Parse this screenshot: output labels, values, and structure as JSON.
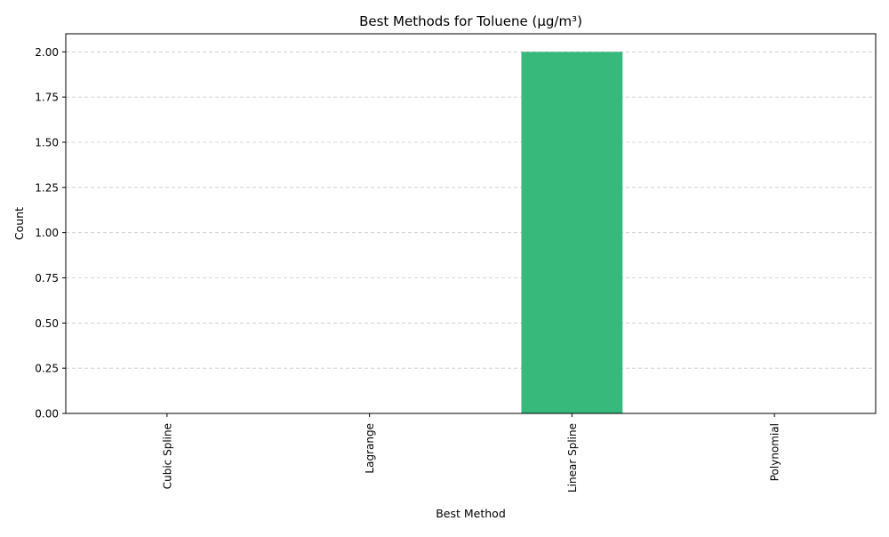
{
  "chart_data": {
    "type": "bar",
    "title": "Best Methods for Toluene (µg/m³)",
    "xlabel": "Best Method",
    "ylabel": "Count",
    "categories": [
      "Cubic Spline",
      "Lagrange",
      "Linear Spline",
      "Polynomial"
    ],
    "values": [
      0,
      0,
      2,
      0
    ],
    "ylim": [
      0,
      2.1
    ],
    "yticks": [
      "0.00",
      "0.25",
      "0.50",
      "0.75",
      "1.00",
      "1.25",
      "1.50",
      "1.75",
      "2.00"
    ],
    "ytick_values": [
      0,
      0.25,
      0.5,
      0.75,
      1.0,
      1.25,
      1.5,
      1.75,
      2.0
    ],
    "grid": "y-dashed",
    "legend": "none",
    "bar_color": "#36b97a"
  }
}
